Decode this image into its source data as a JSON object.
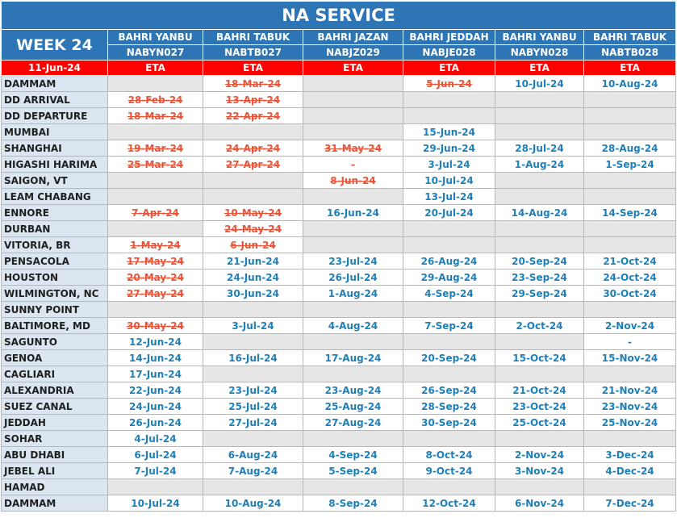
{
  "title": "NA SERVICE",
  "week": "WEEK 24",
  "date": "11-Jun-24",
  "columns": [
    {
      "ship": "BAHRI YANBU",
      "voyage": "NABYN027",
      "eta": "ETA"
    },
    {
      "ship": "BAHRI TABUK",
      "voyage": "NABTB027",
      "eta": "ETA"
    },
    {
      "ship": "BAHRI JAZAN",
      "voyage": "NABJZ029",
      "eta": "ETA"
    },
    {
      "ship": "BAHRI JEDDAH",
      "voyage": "NABJE028",
      "eta": "ETA"
    },
    {
      "ship": "BAHRI YANBU",
      "voyage": "NABYN028",
      "eta": "ETA"
    },
    {
      "ship": "BAHRI TABUK",
      "voyage": "NABTB028",
      "eta": "ETA"
    }
  ],
  "rows": [
    {
      "port": "DAMMAM",
      "cells": [
        null,
        {
          "text": "18-Mar-24",
          "struck": true
        },
        null,
        {
          "text": "5-Jun-24",
          "struck": true
        },
        "10-Jul-24",
        "10-Aug-24"
      ]
    },
    {
      "port": "DD ARRIVAL",
      "cells": [
        {
          "text": "28-Feb-24",
          "struck": true
        },
        {
          "text": "13-Apr-24",
          "struck": true
        },
        null,
        null,
        null,
        null
      ]
    },
    {
      "port": "DD DEPARTURE",
      "cells": [
        {
          "text": "18-Mar-24",
          "struck": true
        },
        {
          "text": "22-Apr-24",
          "struck": true
        },
        null,
        null,
        null,
        null
      ]
    },
    {
      "port": "MUMBAI",
      "cells": [
        null,
        null,
        null,
        "15-Jun-24",
        null,
        null
      ]
    },
    {
      "port": "SHANGHAI",
      "cells": [
        {
          "text": "19-Mar-24",
          "struck": true
        },
        {
          "text": "24-Apr-24",
          "struck": true
        },
        {
          "text": "31-May-24",
          "struck": true
        },
        "29-Jun-24",
        "28-Jul-24",
        "28-Aug-24"
      ]
    },
    {
      "port": "HIGASHI HARIMA",
      "cells": [
        {
          "text": "25-Mar-24",
          "struck": true
        },
        {
          "text": "27-Apr-24",
          "struck": true
        },
        {
          "text": "-",
          "struck": true
        },
        "3-Jul-24",
        "1-Aug-24",
        "1-Sep-24"
      ]
    },
    {
      "port": "SAIGON, VT",
      "cells": [
        null,
        null,
        {
          "text": "8-Jun-24",
          "struck": true
        },
        "10-Jul-24",
        null,
        null
      ]
    },
    {
      "port": "LEAM CHABANG",
      "cells": [
        null,
        null,
        null,
        "13-Jul-24",
        null,
        null
      ]
    },
    {
      "port": "ENNORE",
      "cells": [
        {
          "text": "7-Apr-24",
          "struck": true
        },
        {
          "text": "10-May-24",
          "struck": true
        },
        "16-Jun-24",
        "20-Jul-24",
        "14-Aug-24",
        "14-Sep-24"
      ]
    },
    {
      "port": "DURBAN",
      "cells": [
        null,
        {
          "text": "24-May-24",
          "struck": true
        },
        null,
        null,
        null,
        null
      ]
    },
    {
      "port": "VITORIA, BR",
      "cells": [
        {
          "text": "1-May-24",
          "struck": true
        },
        {
          "text": "6-Jun-24",
          "struck": true
        },
        null,
        null,
        null,
        null
      ]
    },
    {
      "port": "PENSACOLA",
      "cells": [
        {
          "text": "17-May-24",
          "struck": true
        },
        "21-Jun-24",
        "23-Jul-24",
        "26-Aug-24",
        "20-Sep-24",
        "21-Oct-24"
      ]
    },
    {
      "port": "HOUSTON",
      "cells": [
        {
          "text": "20-May-24",
          "struck": true
        },
        "24-Jun-24",
        "26-Jul-24",
        "29-Aug-24",
        "23-Sep-24",
        "24-Oct-24"
      ]
    },
    {
      "port": "WILMINGTON, NC",
      "cells": [
        {
          "text": "27-May-24",
          "struck": true
        },
        "30-Jun-24",
        "1-Aug-24",
        "4-Sep-24",
        "29-Sep-24",
        "30-Oct-24"
      ]
    },
    {
      "port": "SUNNY POINT",
      "cells": [
        null,
        null,
        null,
        null,
        null,
        null
      ]
    },
    {
      "port": "BALTIMORE, MD",
      "cells": [
        {
          "text": "30-May-24",
          "struck": true
        },
        "3-Jul-24",
        "4-Aug-24",
        "7-Sep-24",
        "2-Oct-24",
        "2-Nov-24"
      ]
    },
    {
      "port": "SAGUNTO",
      "cells": [
        "12-Jun-24",
        null,
        null,
        null,
        null,
        "-"
      ]
    },
    {
      "port": "GENOA",
      "cells": [
        "14-Jun-24",
        "16-Jul-24",
        "17-Aug-24",
        "20-Sep-24",
        "15-Oct-24",
        "15-Nov-24"
      ]
    },
    {
      "port": "CAGLIARI",
      "cells": [
        "17-Jun-24",
        null,
        null,
        null,
        null,
        null
      ]
    },
    {
      "port": "ALEXANDRIA",
      "cells": [
        "22-Jun-24",
        "23-Jul-24",
        "23-Aug-24",
        "26-Sep-24",
        "21-Oct-24",
        "21-Nov-24"
      ]
    },
    {
      "port": "SUEZ CANAL",
      "cells": [
        "24-Jun-24",
        "25-Jul-24",
        "25-Aug-24",
        "28-Sep-24",
        "23-Oct-24",
        "23-Nov-24"
      ]
    },
    {
      "port": "JEDDAH",
      "cells": [
        "26-Jun-24",
        "27-Jul-24",
        "27-Aug-24",
        "30-Sep-24",
        "25-Oct-24",
        "25-Nov-24"
      ]
    },
    {
      "port": "SOHAR",
      "cells": [
        "4-Jul-24",
        null,
        null,
        null,
        null,
        null
      ]
    },
    {
      "port": "ABU DHABI",
      "cells": [
        "6-Jul-24",
        "6-Aug-24",
        "4-Sep-24",
        "8-Oct-24",
        "2-Nov-24",
        "3-Dec-24"
      ]
    },
    {
      "port": "JEBEL ALI",
      "cells": [
        "7-Jul-24",
        "7-Aug-24",
        "5-Sep-24",
        "9-Oct-24",
        "3-Nov-24",
        "4-Dec-24"
      ]
    },
    {
      "port": "HAMAD",
      "cells": [
        null,
        null,
        null,
        null,
        null,
        null
      ]
    },
    {
      "port": "DAMMAM",
      "cells": [
        "10-Jul-24",
        "10-Aug-24",
        "8-Sep-24",
        "12-Oct-24",
        "6-Nov-24",
        "7-Dec-24"
      ]
    }
  ]
}
